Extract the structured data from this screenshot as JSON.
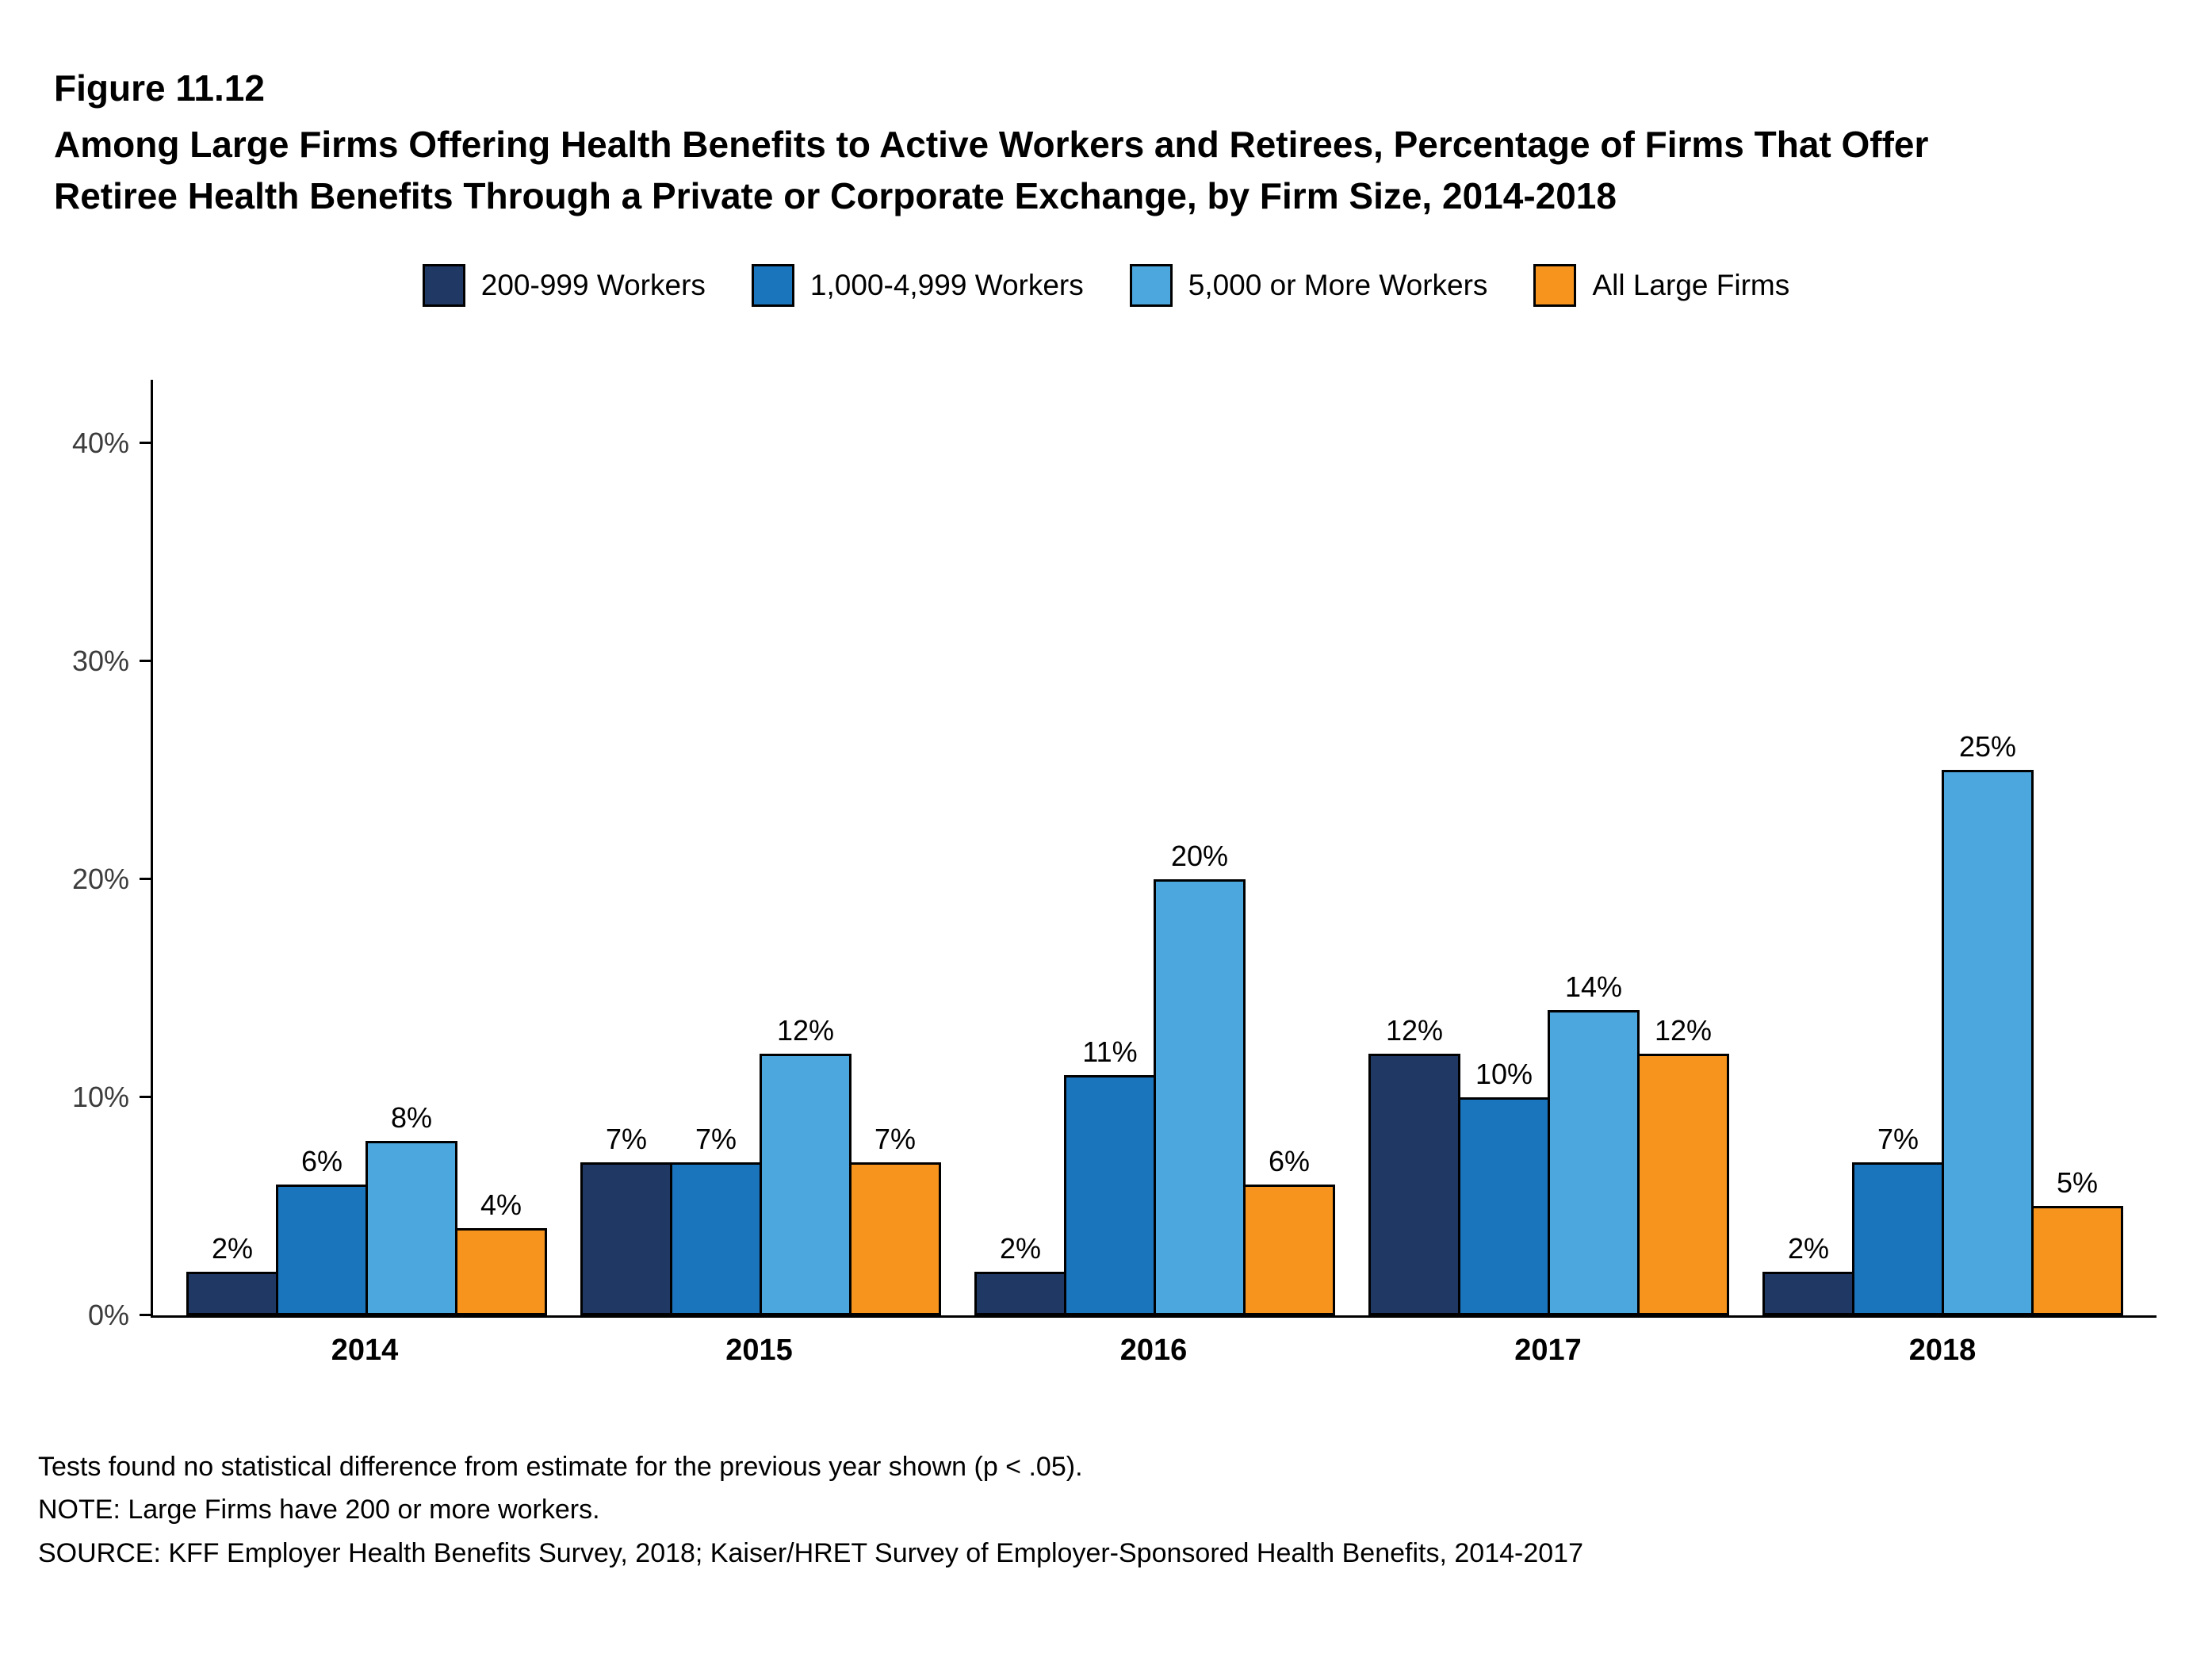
{
  "title": {
    "figure": "Figure 11.12",
    "text": "Among Large Firms Offering Health Benefits to Active Workers and Retirees, Percentage of Firms That Offer Retiree Health Benefits Through a Private or Corporate Exchange, by Firm Size, 2014-2018"
  },
  "chart_data": {
    "type": "bar",
    "title": "Among Large Firms Offering Health Benefits to Active Workers and Retirees, Percentage of Firms That Offer Retiree Health Benefits Through a Private or Corporate Exchange, by Firm Size, 2014-2018",
    "categories": [
      "2014",
      "2015",
      "2016",
      "2017",
      "2018"
    ],
    "series": [
      {
        "name": "200-999 Workers",
        "color": "#1F3864",
        "values": [
          2,
          7,
          2,
          12,
          2
        ]
      },
      {
        "name": "1,000-4,999 Workers",
        "color": "#1B75BC",
        "values": [
          6,
          7,
          11,
          10,
          7
        ]
      },
      {
        "name": "5,000 or More Workers",
        "color": "#4BA7DE",
        "values": [
          8,
          12,
          20,
          14,
          25
        ]
      },
      {
        "name": "All Large Firms",
        "color": "#F7941E",
        "values": [
          4,
          7,
          6,
          12,
          5
        ]
      }
    ],
    "value_label_suffix": "%",
    "xlabel": "",
    "ylabel": "",
    "ylim": [
      0,
      43
    ],
    "yticks": [
      "0%",
      "10%",
      "20%",
      "30%",
      "40%"
    ],
    "grid": false,
    "legend_position": "top"
  },
  "footnotes": [
    "Tests found no statistical difference from estimate for the previous year shown (p < .05).",
    "NOTE: Large Firms have 200 or more workers.",
    "SOURCE: KFF Employer Health Benefits Survey, 2018; Kaiser/HRET Survey of Employer-Sponsored Health Benefits, 2014-2017"
  ]
}
